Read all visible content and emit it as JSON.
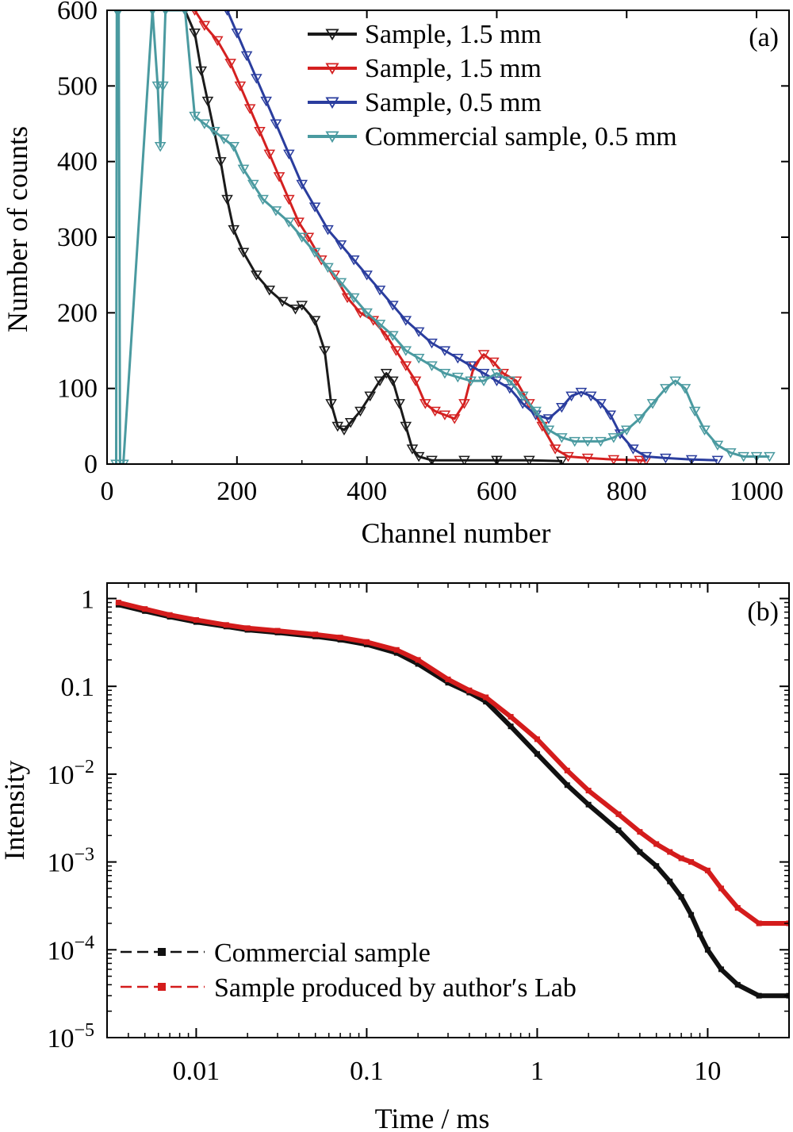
{
  "chart_data": [
    {
      "type": "line",
      "panel_label": "(a)",
      "xlabel": "Channel number",
      "ylabel": "Number of counts",
      "xlim": [
        0,
        1050
      ],
      "ylim": [
        0,
        600
      ],
      "xticks": [
        0,
        200,
        400,
        600,
        800,
        1000
      ],
      "yticks": [
        0,
        100,
        200,
        300,
        400,
        500,
        600
      ],
      "grid": false,
      "legend_position": "top-right",
      "marker": "down-triangle",
      "series": [
        {
          "name": "Sample, 1.5 mm",
          "color": "#1a1a1a",
          "points": [
            [
              120,
              600
            ],
            [
              135,
              570
            ],
            [
              145,
              520
            ],
            [
              155,
              480
            ],
            [
              165,
              440
            ],
            [
              175,
              400
            ],
            [
              185,
              350
            ],
            [
              195,
              310
            ],
            [
              210,
              280
            ],
            [
              230,
              250
            ],
            [
              250,
              230
            ],
            [
              270,
              215
            ],
            [
              290,
              205
            ],
            [
              300,
              210
            ],
            [
              320,
              190
            ],
            [
              335,
              150
            ],
            [
              345,
              80
            ],
            [
              355,
              50
            ],
            [
              365,
              45
            ],
            [
              375,
              55
            ],
            [
              390,
              70
            ],
            [
              405,
              90
            ],
            [
              420,
              110
            ],
            [
              430,
              120
            ],
            [
              440,
              110
            ],
            [
              450,
              80
            ],
            [
              460,
              50
            ],
            [
              470,
              20
            ],
            [
              480,
              10
            ],
            [
              500,
              5
            ],
            [
              550,
              5
            ],
            [
              600,
              5
            ],
            [
              650,
              5
            ],
            [
              700,
              4
            ]
          ]
        },
        {
          "name": "Sample, 1.5 mm",
          "color": "#d42020",
          "points": [
            [
              135,
              600
            ],
            [
              150,
              580
            ],
            [
              170,
              560
            ],
            [
              190,
              530
            ],
            [
              205,
              500
            ],
            [
              220,
              470
            ],
            [
              235,
              440
            ],
            [
              250,
              410
            ],
            [
              265,
              380
            ],
            [
              280,
              350
            ],
            [
              295,
              320
            ],
            [
              310,
              300
            ],
            [
              330,
              270
            ],
            [
              350,
              250
            ],
            [
              370,
              220
            ],
            [
              390,
              200
            ],
            [
              410,
              190
            ],
            [
              430,
              170
            ],
            [
              445,
              150
            ],
            [
              460,
              130
            ],
            [
              475,
              110
            ],
            [
              490,
              80
            ],
            [
              505,
              70
            ],
            [
              520,
              65
            ],
            [
              535,
              60
            ],
            [
              550,
              80
            ],
            [
              565,
              130
            ],
            [
              580,
              145
            ],
            [
              595,
              135
            ],
            [
              610,
              120
            ],
            [
              630,
              110
            ],
            [
              650,
              80
            ],
            [
              670,
              50
            ],
            [
              690,
              20
            ],
            [
              710,
              10
            ],
            [
              740,
              8
            ],
            [
              780,
              6
            ],
            [
              820,
              5
            ],
            [
              830,
              5
            ]
          ]
        },
        {
          "name": "Sample, 0.5 mm",
          "color": "#2a3d9e",
          "points": [
            [
              185,
              600
            ],
            [
              200,
              570
            ],
            [
              215,
              540
            ],
            [
              230,
              510
            ],
            [
              245,
              480
            ],
            [
              260,
              450
            ],
            [
              280,
              410
            ],
            [
              300,
              370
            ],
            [
              320,
              340
            ],
            [
              340,
              310
            ],
            [
              360,
              290
            ],
            [
              380,
              270
            ],
            [
              400,
              250
            ],
            [
              420,
              230
            ],
            [
              440,
              210
            ],
            [
              460,
              190
            ],
            [
              480,
              175
            ],
            [
              500,
              160
            ],
            [
              520,
              150
            ],
            [
              540,
              140
            ],
            [
              560,
              130
            ],
            [
              580,
              120
            ],
            [
              600,
              110
            ],
            [
              620,
              100
            ],
            [
              640,
              80
            ],
            [
              660,
              65
            ],
            [
              680,
              60
            ],
            [
              700,
              75
            ],
            [
              715,
              90
            ],
            [
              730,
              95
            ],
            [
              745,
              90
            ],
            [
              760,
              80
            ],
            [
              775,
              65
            ],
            [
              790,
              40
            ],
            [
              810,
              20
            ],
            [
              830,
              10
            ],
            [
              860,
              8
            ],
            [
              900,
              6
            ],
            [
              940,
              5
            ]
          ]
        },
        {
          "name": "Commercial sample, 0.5 mm",
          "color": "#4a9aa0",
          "points": [
            [
              14,
              0
            ],
            [
              15,
              600
            ],
            [
              16,
              600
            ],
            [
              18,
              600
            ],
            [
              20,
              0
            ],
            [
              25,
              0
            ],
            [
              70,
              600
            ],
            [
              78,
              500
            ],
            [
              82,
              420
            ],
            [
              86,
              500
            ],
            [
              90,
              600
            ],
            [
              120,
              600
            ],
            [
              135,
              460
            ],
            [
              150,
              450
            ],
            [
              165,
              440
            ],
            [
              180,
              430
            ],
            [
              195,
              420
            ],
            [
              210,
              390
            ],
            [
              225,
              370
            ],
            [
              240,
              350
            ],
            [
              260,
              335
            ],
            [
              280,
              320
            ],
            [
              300,
              300
            ],
            [
              320,
              280
            ],
            [
              340,
              260
            ],
            [
              360,
              240
            ],
            [
              380,
              220
            ],
            [
              400,
              200
            ],
            [
              420,
              185
            ],
            [
              440,
              170
            ],
            [
              460,
              150
            ],
            [
              480,
              140
            ],
            [
              500,
              130
            ],
            [
              520,
              120
            ],
            [
              540,
              115
            ],
            [
              560,
              110
            ],
            [
              580,
              110
            ],
            [
              600,
              120
            ],
            [
              620,
              110
            ],
            [
              640,
              90
            ],
            [
              660,
              70
            ],
            [
              680,
              45
            ],
            [
              700,
              35
            ],
            [
              720,
              30
            ],
            [
              740,
              30
            ],
            [
              760,
              30
            ],
            [
              780,
              35
            ],
            [
              800,
              45
            ],
            [
              820,
              60
            ],
            [
              840,
              80
            ],
            [
              860,
              100
            ],
            [
              875,
              110
            ],
            [
              890,
              100
            ],
            [
              905,
              70
            ],
            [
              920,
              45
            ],
            [
              940,
              25
            ],
            [
              960,
              15
            ],
            [
              980,
              10
            ],
            [
              1000,
              10
            ],
            [
              1020,
              10
            ]
          ]
        }
      ]
    },
    {
      "type": "scatter",
      "panel_label": "(b)",
      "xlabel": "Time / ms",
      "ylabel": "Intensity",
      "x_scale": "log",
      "y_scale": "log",
      "xlim": [
        0.003,
        30
      ],
      "ylim": [
        1e-05,
        1.5
      ],
      "xticks": [
        0.01,
        0.1,
        1,
        10
      ],
      "xtick_labels": [
        "0.01",
        "0.1",
        "1",
        "10"
      ],
      "yticks": [
        1,
        0.1,
        0.01,
        0.001,
        0.0001,
        1e-05
      ],
      "ytick_labels": [
        {
          "base": "1",
          "exp": ""
        },
        {
          "base": "0.1",
          "exp": ""
        },
        {
          "base": "10",
          "exp": "−2"
        },
        {
          "base": "10",
          "exp": "−3"
        },
        {
          "base": "10",
          "exp": "−4"
        },
        {
          "base": "10",
          "exp": "−5"
        }
      ],
      "grid": false,
      "legend_position": "bottom-left",
      "series": [
        {
          "name": "Commercial sample",
          "color": "#111111",
          "points": [
            [
              0.0035,
              0.85
            ],
            [
              0.005,
              0.72
            ],
            [
              0.007,
              0.62
            ],
            [
              0.01,
              0.54
            ],
            [
              0.015,
              0.48
            ],
            [
              0.02,
              0.44
            ],
            [
              0.03,
              0.41
            ],
            [
              0.05,
              0.37
            ],
            [
              0.07,
              0.34
            ],
            [
              0.1,
              0.3
            ],
            [
              0.15,
              0.24
            ],
            [
              0.2,
              0.18
            ],
            [
              0.3,
              0.11
            ],
            [
              0.4,
              0.085
            ],
            [
              0.5,
              0.067
            ],
            [
              0.7,
              0.035
            ],
            [
              1,
              0.017
            ],
            [
              1.5,
              0.0075
            ],
            [
              2,
              0.0045
            ],
            [
              3,
              0.0023
            ],
            [
              4,
              0.0013
            ],
            [
              5,
              0.0009
            ],
            [
              6,
              0.0006
            ],
            [
              7,
              0.0004
            ],
            [
              8,
              0.00025
            ],
            [
              9,
              0.00015
            ],
            [
              10,
              0.0001
            ],
            [
              12,
              6e-05
            ],
            [
              15,
              4e-05
            ],
            [
              20,
              3e-05
            ],
            [
              30,
              3e-05
            ]
          ]
        },
        {
          "name": "Sample produced by author′s Lab",
          "color": "#d41c1c",
          "points": [
            [
              0.0035,
              0.9
            ],
            [
              0.005,
              0.76
            ],
            [
              0.007,
              0.65
            ],
            [
              0.01,
              0.57
            ],
            [
              0.015,
              0.5
            ],
            [
              0.02,
              0.46
            ],
            [
              0.03,
              0.43
            ],
            [
              0.05,
              0.39
            ],
            [
              0.07,
              0.36
            ],
            [
              0.1,
              0.32
            ],
            [
              0.15,
              0.26
            ],
            [
              0.2,
              0.2
            ],
            [
              0.3,
              0.12
            ],
            [
              0.4,
              0.09
            ],
            [
              0.5,
              0.075
            ],
            [
              0.7,
              0.045
            ],
            [
              1,
              0.025
            ],
            [
              1.5,
              0.011
            ],
            [
              2,
              0.0065
            ],
            [
              3,
              0.0035
            ],
            [
              4,
              0.0022
            ],
            [
              5,
              0.0016
            ],
            [
              6,
              0.0013
            ],
            [
              7,
              0.0011
            ],
            [
              8,
              0.001
            ],
            [
              10,
              0.0008
            ],
            [
              12,
              0.0005
            ],
            [
              15,
              0.0003
            ],
            [
              20,
              0.0002
            ],
            [
              30,
              0.0002
            ]
          ]
        }
      ]
    }
  ]
}
